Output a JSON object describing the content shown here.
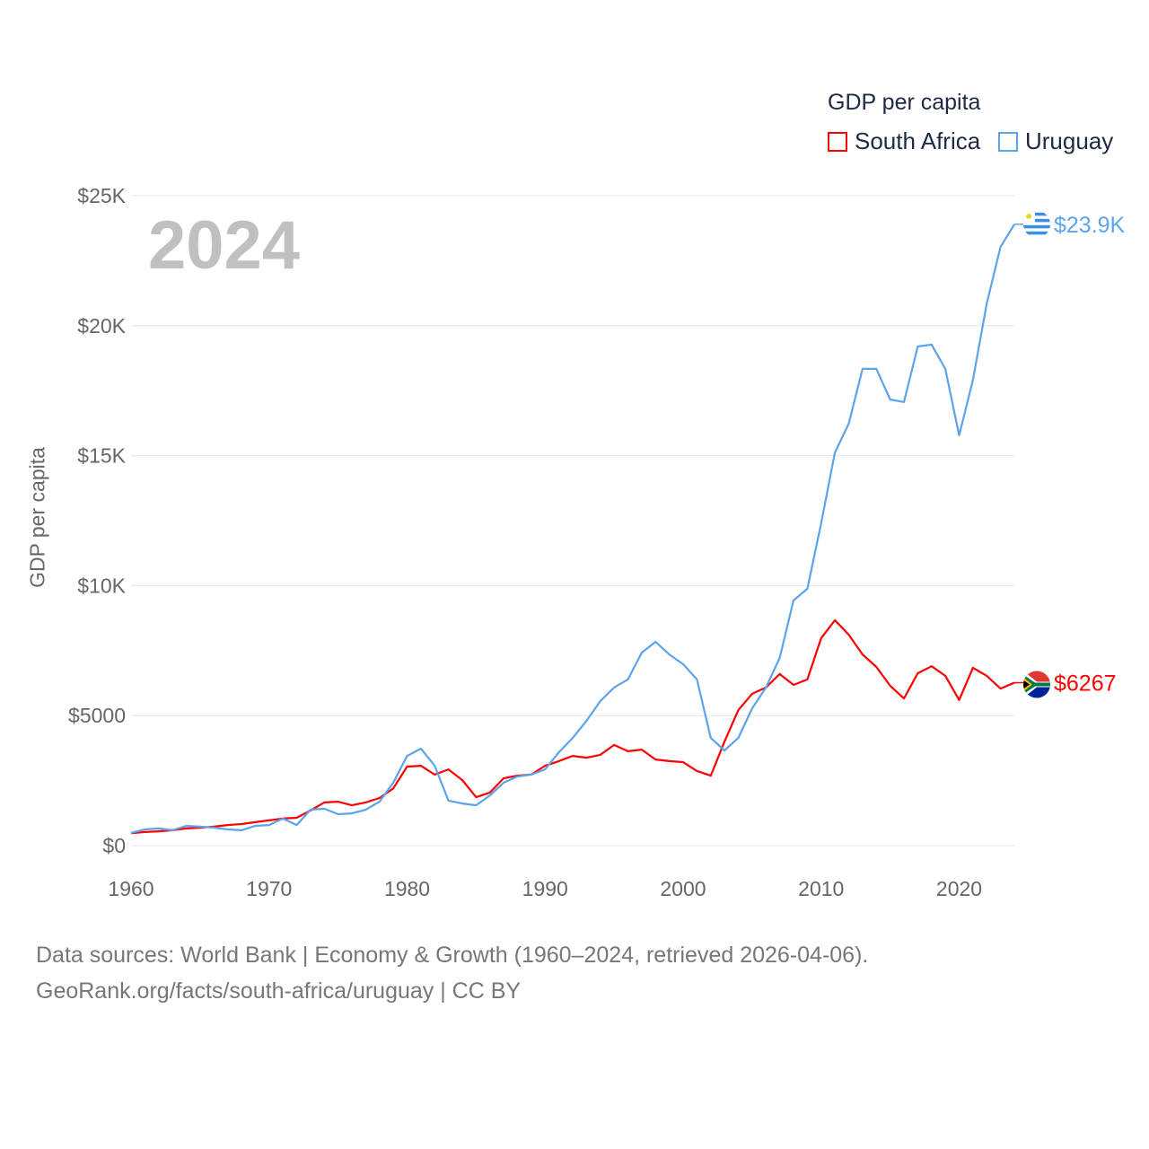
{
  "chart_data": {
    "type": "line",
    "title": "GDP per capita",
    "ylabel": "GDP per capita",
    "xlabel": "",
    "current_year_label": "2024",
    "xlim": [
      1960,
      2024
    ],
    "ylim": [
      0,
      25000
    ],
    "x_ticks": [
      1960,
      1970,
      1980,
      1990,
      2000,
      2010,
      2020
    ],
    "x_tick_labels": [
      "1960",
      "1970",
      "1980",
      "1990",
      "2000",
      "2010",
      "2020"
    ],
    "y_ticks": [
      0,
      5000,
      10000,
      15000,
      20000,
      25000
    ],
    "y_tick_labels": [
      "$0",
      "$5000",
      "$10K",
      "$15K",
      "$20K",
      "$25K"
    ],
    "grid": true,
    "legend_placement": "top-right",
    "x": [
      1960,
      1961,
      1962,
      1963,
      1964,
      1965,
      1966,
      1967,
      1968,
      1969,
      1970,
      1971,
      1972,
      1973,
      1974,
      1975,
      1976,
      1977,
      1978,
      1979,
      1980,
      1981,
      1982,
      1983,
      1984,
      1985,
      1986,
      1987,
      1988,
      1989,
      1990,
      1991,
      1992,
      1993,
      1994,
      1995,
      1996,
      1997,
      1998,
      1999,
      2000,
      2001,
      2002,
      2003,
      2004,
      2005,
      2006,
      2007,
      2008,
      2009,
      2010,
      2011,
      2012,
      2013,
      2014,
      2015,
      2016,
      2017,
      2018,
      2019,
      2020,
      2021,
      2022,
      2023,
      2024
    ],
    "series": [
      {
        "name": "South Africa",
        "color": "#ff0000",
        "end_label": "$6267",
        "values": [
          480,
          520,
          550,
          590,
          660,
          690,
          730,
          790,
          830,
          900,
          970,
          1040,
          1070,
          1350,
          1660,
          1690,
          1550,
          1660,
          1830,
          2200,
          3040,
          3070,
          2730,
          2930,
          2520,
          1860,
          2040,
          2590,
          2690,
          2730,
          3070,
          3250,
          3450,
          3380,
          3490,
          3870,
          3630,
          3690,
          3310,
          3250,
          3210,
          2870,
          2690,
          4000,
          5210,
          5840,
          6080,
          6600,
          6180,
          6390,
          7980,
          8670,
          8110,
          7350,
          6870,
          6150,
          5660,
          6630,
          6900,
          6530,
          5600,
          6840,
          6530,
          6040,
          6267
        ]
      },
      {
        "name": "Uruguay",
        "color": "#5ba4ec",
        "end_label": "$23.9K",
        "values": [
          490,
          620,
          660,
          590,
          760,
          730,
          690,
          620,
          590,
          760,
          790,
          1040,
          790,
          1380,
          1420,
          1210,
          1240,
          1380,
          1690,
          2420,
          3450,
          3730,
          3070,
          1730,
          1620,
          1550,
          1930,
          2420,
          2660,
          2730,
          2930,
          3590,
          4140,
          4800,
          5560,
          6080,
          6390,
          7420,
          7840,
          7350,
          6980,
          6390,
          4140,
          3660,
          4140,
          5280,
          6080,
          7220,
          9430,
          9880,
          12400,
          15120,
          16230,
          18340,
          18340,
          17160,
          17060,
          19200,
          19270,
          18340,
          15780,
          17920,
          20860,
          23030,
          23900
        ]
      }
    ]
  },
  "footer": {
    "line1": "Data sources: World Bank | Economy & Growth (1960–2024, retrieved 2026-04-06).",
    "line2": "GeoRank.org/facts/south-africa/uruguay | CC BY"
  }
}
